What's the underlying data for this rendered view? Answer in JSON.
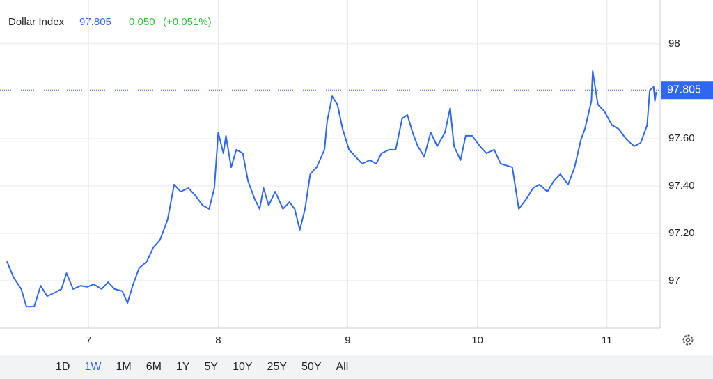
{
  "chart_data": {
    "type": "line",
    "title": "Dollar Index",
    "last_value": 97.805,
    "change": "0.050",
    "change_percent": "(+0.051%)",
    "xlim": [
      6.37,
      11.41
    ],
    "xticks": [
      7,
      8,
      9,
      10,
      11
    ],
    "ylim": [
      96.8,
      98.185
    ],
    "yticks": [
      {
        "value": 97,
        "label": "97"
      },
      {
        "value": 97.2,
        "label": "97.20"
      },
      {
        "value": 97.4,
        "label": "97.40"
      },
      {
        "value": 97.6,
        "label": "97.60"
      },
      {
        "value": 98,
        "label": "98"
      }
    ],
    "grid": true,
    "series": [
      {
        "name": "Dollar Index",
        "color": "#2f67f0",
        "x": [
          6.37,
          6.42,
          6.48,
          6.52,
          6.58,
          6.63,
          6.68,
          6.74,
          6.79,
          6.83,
          6.88,
          6.94,
          6.99,
          7.04,
          7.1,
          7.15,
          7.2,
          7.26,
          7.3,
          7.34,
          7.39,
          7.45,
          7.5,
          7.55,
          7.61,
          7.66,
          7.71,
          7.77,
          7.82,
          7.88,
          7.93,
          7.97,
          8.0,
          8.04,
          8.06,
          8.1,
          8.14,
          8.19,
          8.23,
          8.28,
          8.32,
          8.35,
          8.39,
          8.44,
          8.5,
          8.55,
          8.59,
          8.63,
          8.67,
          8.71,
          8.76,
          8.82,
          8.84,
          8.88,
          8.92,
          8.96,
          9.01,
          9.06,
          9.11,
          9.17,
          9.22,
          9.26,
          9.32,
          9.37,
          9.42,
          9.46,
          9.5,
          9.54,
          9.59,
          9.64,
          9.69,
          9.75,
          9.79,
          9.82,
          9.87,
          9.91,
          9.96,
          10.02,
          10.07,
          10.13,
          10.18,
          10.27,
          10.32,
          10.38,
          10.43,
          10.48,
          10.54,
          10.59,
          10.64,
          10.7,
          10.75,
          10.8,
          10.83,
          10.88,
          10.89,
          10.93,
          10.98,
          11.04,
          11.09,
          11.15,
          11.21,
          11.26,
          11.31,
          11.33,
          11.36,
          11.37,
          11.38
        ],
        "values": [
          97.082,
          97.015,
          96.965,
          96.891,
          96.891,
          96.979,
          96.935,
          96.95,
          96.965,
          97.032,
          96.965,
          96.979,
          96.974,
          96.985,
          96.965,
          96.994,
          96.965,
          96.956,
          96.906,
          96.979,
          97.053,
          97.082,
          97.141,
          97.171,
          97.259,
          97.406,
          97.376,
          97.391,
          97.362,
          97.318,
          97.303,
          97.391,
          97.626,
          97.538,
          97.612,
          97.479,
          97.553,
          97.538,
          97.421,
          97.347,
          97.303,
          97.391,
          97.318,
          97.376,
          97.303,
          97.332,
          97.303,
          97.215,
          97.303,
          97.45,
          97.479,
          97.553,
          97.671,
          97.779,
          97.744,
          97.641,
          97.553,
          97.524,
          97.494,
          97.509,
          97.494,
          97.538,
          97.553,
          97.553,
          97.685,
          97.7,
          97.626,
          97.568,
          97.524,
          97.626,
          97.568,
          97.626,
          97.729,
          97.568,
          97.509,
          97.612,
          97.612,
          97.568,
          97.538,
          97.553,
          97.494,
          97.479,
          97.303,
          97.347,
          97.391,
          97.406,
          97.376,
          97.421,
          97.45,
          97.406,
          97.479,
          97.597,
          97.641,
          97.759,
          97.885,
          97.744,
          97.715,
          97.656,
          97.641,
          97.597,
          97.568,
          97.582,
          97.656,
          97.803,
          97.818,
          97.759,
          97.797
        ]
      }
    ]
  },
  "range_buttons": [
    "1D",
    "1W",
    "1M",
    "6M",
    "1Y",
    "5Y",
    "10Y",
    "25Y",
    "50Y",
    "All"
  ],
  "active_range": 1
}
